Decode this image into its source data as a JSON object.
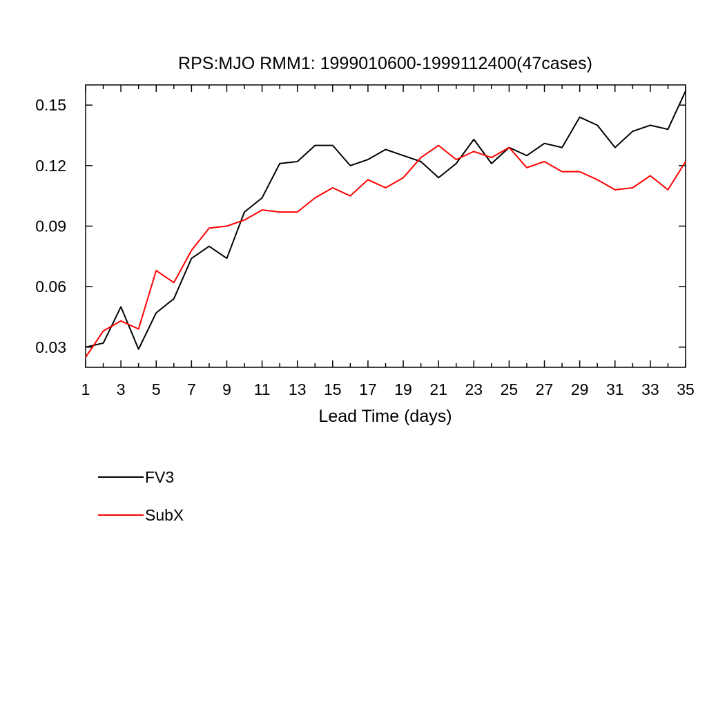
{
  "chart_data": {
    "type": "line",
    "title": "RPS:MJO RMM1: 1999010600-1999112400(47cases)",
    "xlabel": "Lead Time (days)",
    "ylabel": "",
    "xlim": [
      1,
      35
    ],
    "ylim": [
      0.02,
      0.16
    ],
    "x_ticks": [
      1,
      3,
      5,
      7,
      9,
      11,
      13,
      15,
      17,
      19,
      21,
      23,
      25,
      27,
      29,
      31,
      33,
      35
    ],
    "y_ticks": [
      0.03,
      0.06,
      0.09,
      0.12,
      0.15
    ],
    "y_tick_labels": [
      "0.03",
      "0.06",
      "0.09",
      "0.12",
      "0.15"
    ],
    "grid": false,
    "legend_position": "bottom-left-below-plot",
    "x": [
      1,
      2,
      3,
      4,
      5,
      6,
      7,
      8,
      9,
      10,
      11,
      12,
      13,
      14,
      15,
      16,
      17,
      18,
      19,
      20,
      21,
      22,
      23,
      24,
      25,
      26,
      27,
      28,
      29,
      30,
      31,
      32,
      33,
      34,
      35
    ],
    "series": [
      {
        "name": "FV3",
        "color": "#000000",
        "values": [
          0.03,
          0.032,
          0.05,
          0.029,
          0.047,
          0.054,
          0.074,
          0.08,
          0.074,
          0.097,
          0.104,
          0.121,
          0.122,
          0.13,
          0.13,
          0.12,
          0.123,
          0.128,
          0.125,
          0.122,
          0.114,
          0.121,
          0.133,
          0.121,
          0.129,
          0.125,
          0.131,
          0.129,
          0.144,
          0.14,
          0.129,
          0.137,
          0.14,
          0.138,
          0.157
        ]
      },
      {
        "name": "SubX",
        "color": "#ff0000",
        "values": [
          0.025,
          0.038,
          0.043,
          0.039,
          0.068,
          0.062,
          0.078,
          0.089,
          0.09,
          0.093,
          0.098,
          0.097,
          0.097,
          0.104,
          0.109,
          0.105,
          0.113,
          0.109,
          0.114,
          0.124,
          0.13,
          0.123,
          0.127,
          0.124,
          0.129,
          0.119,
          0.122,
          0.117,
          0.117,
          0.113,
          0.108,
          0.109,
          0.115,
          0.108,
          0.122
        ]
      }
    ]
  }
}
